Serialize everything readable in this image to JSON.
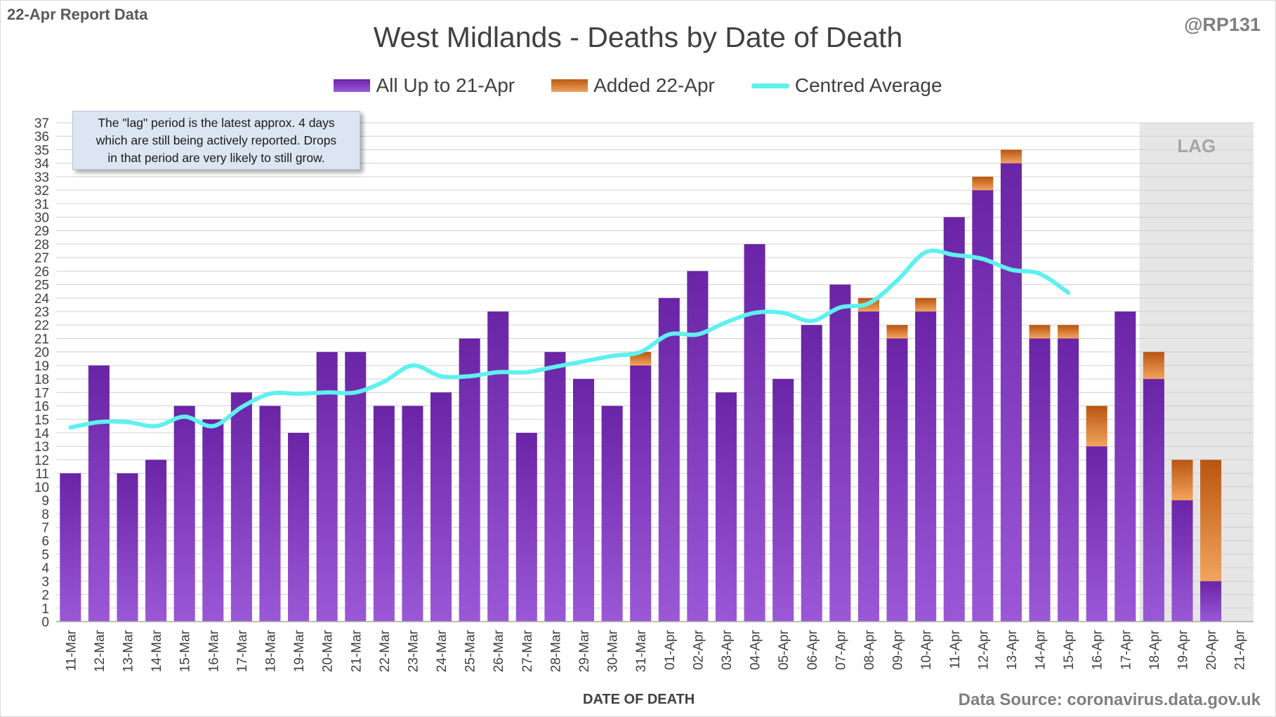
{
  "header": {
    "report_label": "22-Apr Report Data",
    "handle": "@RP131",
    "title": "West Midlands - Deaths by Date of Death"
  },
  "legend": {
    "series1": "All Up to 21-Apr",
    "series2": "Added 22-Apr",
    "series3": "Centred Average"
  },
  "note": {
    "line1": "The \"lag\" period is the latest approx. 4 days",
    "line2": "which are still being actively reported.  Drops",
    "line3": "in that period are very likely to still grow."
  },
  "lag_label": "LAG",
  "footer": {
    "x_axis_title": "DATE OF DEATH",
    "source": "Data Source: coronavirus.data.gov.uk"
  },
  "colors": {
    "base_bar": "#7030a0",
    "added_bar": "#e07b28",
    "average_line": "#5ff0f0",
    "lag_shade": "#e6e6e6"
  },
  "chart_data": {
    "type": "bar",
    "stacked": true,
    "title": "West Midlands - Deaths by Date of Death",
    "xlabel": "DATE OF DEATH",
    "ylabel": "",
    "ylim": [
      0,
      37
    ],
    "yticks": [
      0,
      1,
      2,
      3,
      4,
      5,
      6,
      7,
      8,
      9,
      10,
      11,
      12,
      13,
      14,
      15,
      16,
      17,
      18,
      19,
      20,
      21,
      22,
      23,
      24,
      25,
      26,
      27,
      28,
      29,
      30,
      31,
      32,
      33,
      34,
      35,
      36,
      37
    ],
    "grid": true,
    "legend_position": "top-center",
    "lag_period": [
      "18-Apr",
      "21-Apr"
    ],
    "categories": [
      "11-Mar",
      "12-Mar",
      "13-Mar",
      "14-Mar",
      "15-Mar",
      "16-Mar",
      "17-Mar",
      "18-Mar",
      "19-Mar",
      "20-Mar",
      "21-Mar",
      "22-Mar",
      "23-Mar",
      "24-Mar",
      "25-Mar",
      "26-Mar",
      "27-Mar",
      "28-Mar",
      "29-Mar",
      "30-Mar",
      "31-Mar",
      "01-Apr",
      "02-Apr",
      "03-Apr",
      "04-Apr",
      "05-Apr",
      "06-Apr",
      "07-Apr",
      "08-Apr",
      "09-Apr",
      "10-Apr",
      "11-Apr",
      "12-Apr",
      "13-Apr",
      "14-Apr",
      "15-Apr",
      "16-Apr",
      "17-Apr",
      "18-Apr",
      "19-Apr",
      "20-Apr",
      "21-Apr"
    ],
    "series": [
      {
        "name": "All Up to 21-Apr",
        "kind": "bar",
        "values": [
          11,
          19,
          11,
          12,
          16,
          15,
          17,
          16,
          14,
          20,
          20,
          16,
          16,
          17,
          21,
          23,
          14,
          20,
          18,
          16,
          19,
          24,
          26,
          17,
          28,
          18,
          22,
          25,
          23,
          21,
          23,
          30,
          32,
          34,
          21,
          21,
          13,
          23,
          18,
          9,
          3,
          0
        ]
      },
      {
        "name": "Added 22-Apr",
        "kind": "bar",
        "values": [
          0,
          0,
          0,
          0,
          0,
          0,
          0,
          0,
          0,
          0,
          0,
          0,
          0,
          0,
          0,
          0,
          0,
          0,
          0,
          0,
          1,
          0,
          0,
          0,
          0,
          0,
          0,
          0,
          1,
          1,
          1,
          0,
          1,
          1,
          1,
          1,
          3,
          0,
          2,
          3,
          9,
          0
        ]
      },
      {
        "name": "Centred Average",
        "kind": "line",
        "values": [
          14.4,
          14.8,
          14.8,
          14.5,
          15.2,
          14.5,
          15.9,
          16.9,
          16.9,
          17.0,
          17.0,
          17.8,
          19.0,
          18.2,
          18.2,
          18.5,
          18.5,
          18.9,
          19.3,
          19.7,
          20.0,
          21.3,
          21.3,
          22.2,
          22.9,
          22.9,
          22.3,
          23.3,
          23.6,
          25.3,
          27.4,
          27.2,
          26.9,
          26.1,
          25.8,
          24.4,
          null,
          null,
          null,
          null,
          null,
          null
        ]
      }
    ]
  }
}
